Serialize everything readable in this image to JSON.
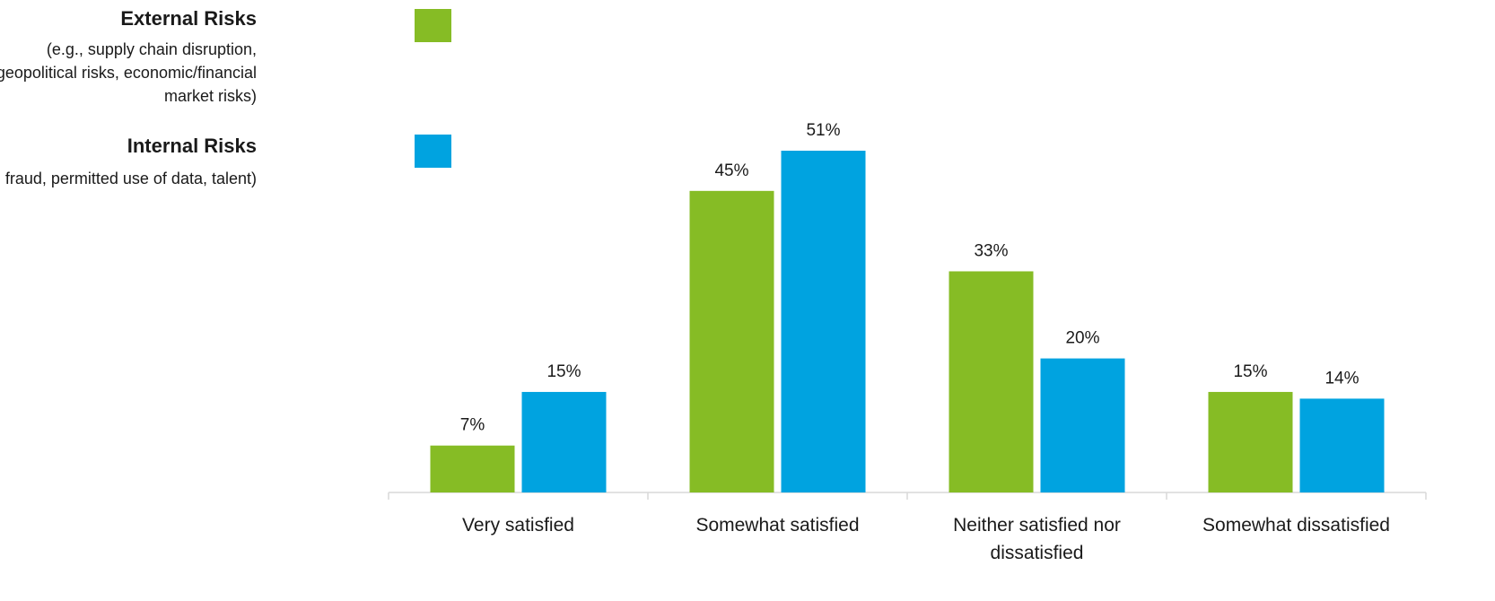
{
  "chart_data": {
    "type": "bar",
    "categories": [
      [
        "Very satisfied"
      ],
      [
        "Somewhat satisfied"
      ],
      [
        "Neither satisfied nor",
        "dissatisfied"
      ],
      [
        "Somewhat dissatisfied"
      ]
    ],
    "series": [
      {
        "name": "External Risks",
        "description": [
          "(e.g., supply chain disruption,",
          "geopolitical risks, economic/financial",
          "market risks)"
        ],
        "color": "#86bc25",
        "values": [
          7,
          45,
          33,
          15
        ],
        "labels": [
          "7%",
          "45%",
          "33%",
          "15%"
        ]
      },
      {
        "name": "Internal Risks",
        "description": [
          "(e.g., fraud, permitted use of data, talent)"
        ],
        "color": "#00a3e0",
        "values": [
          15,
          51,
          20,
          14
        ],
        "labels": [
          "15%",
          "51%",
          "20%",
          "14%"
        ]
      }
    ],
    "unit": "%",
    "ylim": [
      0,
      55
    ],
    "grid": false,
    "legend_position": "top-left",
    "axis_color": "#d9d9d9"
  }
}
